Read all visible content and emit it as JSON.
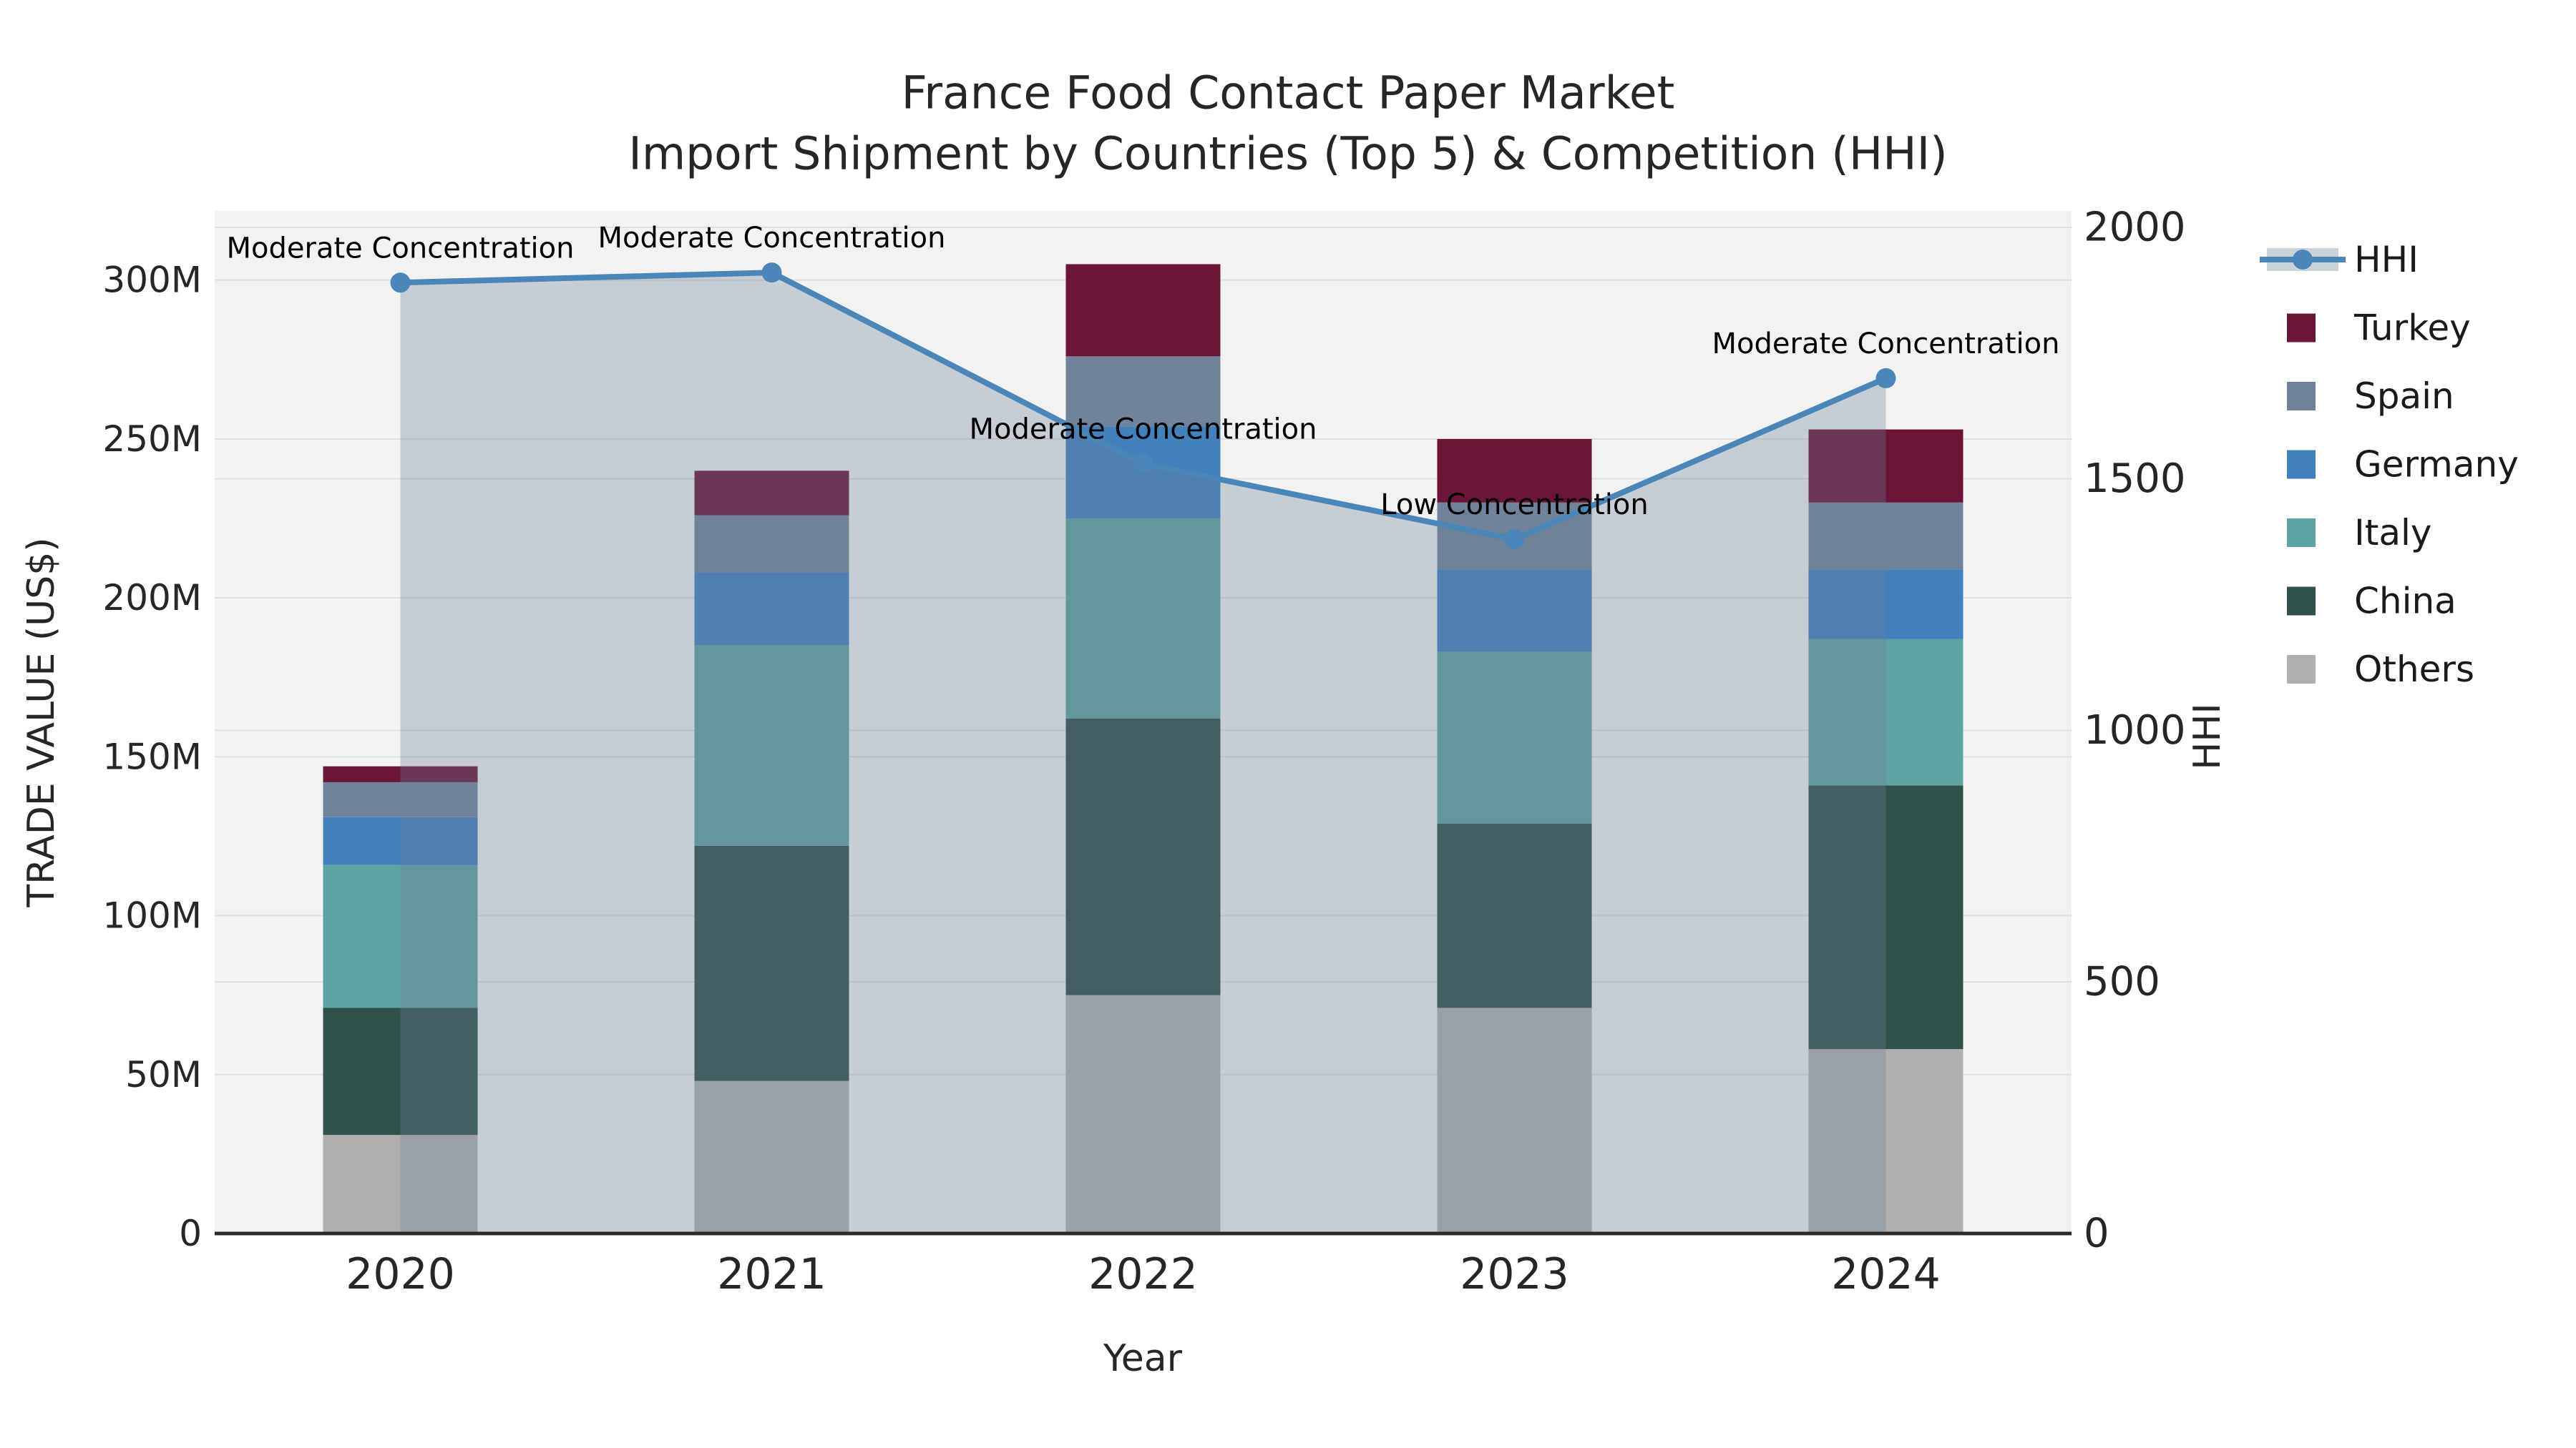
{
  "figure": {
    "title_line1": "France Food Contact Paper Market",
    "title_line2": "Import Shipment by Countries (Top 5) & Competition (HHI)",
    "background": "#ffffff",
    "plot_background": "#f2f2f2",
    "grid_color": "#dedede",
    "spine_color": "#2b2b2b"
  },
  "chart_data": {
    "type": "combo: stacked-bar + line-area",
    "title": "France Food Contact Paper Market",
    "subtitle": "Import Shipment by Countries (Top 5) & Competition (HHI)",
    "xlabel": "Year",
    "ylabel_left": "TRADE VALUE (US$)",
    "ylabel_right": "HHI",
    "categories": [
      "2020",
      "2021",
      "2022",
      "2023",
      "2024"
    ],
    "bar_unit": "million US$",
    "stack_order_bottom_to_top": [
      "Others",
      "China",
      "Italy",
      "Germany",
      "Spain",
      "Turkey"
    ],
    "series": [
      {
        "name": "Others",
        "color": "#aeb0b0",
        "values": [
          31,
          48,
          75,
          71,
          58
        ]
      },
      {
        "name": "China",
        "color": "#30504c",
        "values": [
          40,
          74,
          87,
          58,
          83
        ]
      },
      {
        "name": "Italy",
        "color": "#5ca3a1",
        "values": [
          45,
          63,
          63,
          54,
          46
        ]
      },
      {
        "name": "Germany",
        "color": "#4381bc",
        "values": [
          15,
          23,
          29,
          26,
          22
        ]
      },
      {
        "name": "Spain",
        "color": "#71839a",
        "values": [
          11,
          18,
          22,
          21,
          21
        ]
      },
      {
        "name": "Turkey",
        "color": "#6b1538",
        "values": [
          5,
          14,
          29,
          20,
          23
        ]
      }
    ],
    "bar_totals_M": [
      147,
      240,
      305,
      250,
      253
    ],
    "line": {
      "name": "HHI",
      "color": "#4a86b8",
      "area_fill": "rgba(110,127,150,0.32)",
      "legend_band_color": "#ccd2da",
      "values": [
        1890,
        1910,
        1530,
        1380,
        1700
      ]
    },
    "annotations": [
      {
        "category": "2020",
        "label": "Moderate Concentration"
      },
      {
        "category": "2021",
        "label": "Moderate Concentration"
      },
      {
        "category": "2022",
        "label": "Moderate Concentration"
      },
      {
        "category": "2023",
        "label": "Low Concentration"
      },
      {
        "category": "2024",
        "label": "Moderate Concentration"
      }
    ],
    "axes": {
      "left_ticks": [
        {
          "v": 0,
          "label": "0"
        },
        {
          "v": 50,
          "label": "50M"
        },
        {
          "v": 100,
          "label": "100M"
        },
        {
          "v": 150,
          "label": "150M"
        },
        {
          "v": 200,
          "label": "200M"
        },
        {
          "v": 250,
          "label": "250M"
        },
        {
          "v": 300,
          "label": "300M"
        }
      ],
      "right_ticks": [
        {
          "v": 0,
          "label": "0"
        },
        {
          "v": 500,
          "label": "500"
        },
        {
          "v": 1000,
          "label": "1000"
        },
        {
          "v": 1500,
          "label": "1500"
        },
        {
          "v": 2000,
          "label": "2000"
        }
      ],
      "left_max": 321.75,
      "right_max": 2032.5,
      "grid": true,
      "legend_position": "right"
    },
    "legend_order": [
      "HHI",
      "Turkey",
      "Spain",
      "Germany",
      "Italy",
      "China",
      "Others"
    ]
  }
}
